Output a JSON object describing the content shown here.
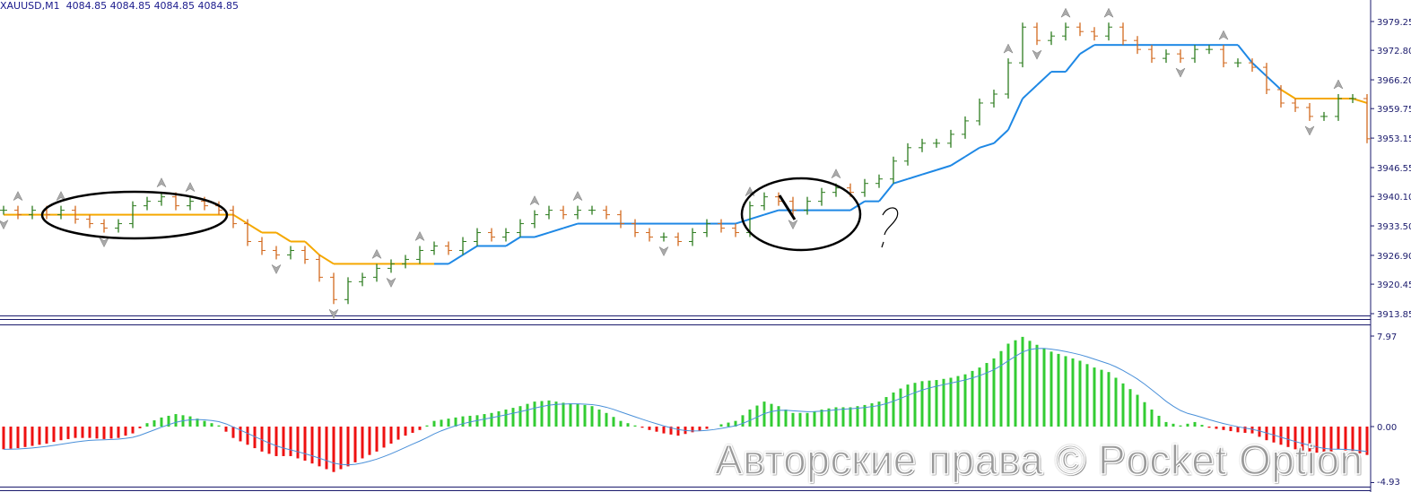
{
  "chart_header": {
    "title": "XAUUSD,M1  4084.85 4084.85 4084.85 4084.85"
  },
  "watermark": "Авторские права © Pocket Option",
  "colors": {
    "bull": "#2e7d1f",
    "bear": "#d2691e",
    "stop_long": "#1e88e5",
    "stop_short": "#f5a800",
    "hist_pos": "#33cc33",
    "hist_neg": "#ee1111",
    "signal": "#4a90d9",
    "axis": "#1a1a6c",
    "annotation": "#000000"
  },
  "chart_data": [
    {
      "type": "line",
      "panel": "price",
      "ylim": [
        3913.85,
        3982
      ],
      "y_ticks": [
        "3979.25",
        "3972.80",
        "3966.20",
        "3959.75",
        "3953.15",
        "3946.55",
        "3940.10",
        "3933.50",
        "3926.90",
        "3920.45",
        "3913.85"
      ],
      "closes": [
        3937,
        3936,
        3937,
        3936,
        3937,
        3935,
        3934,
        3933,
        3934,
        3938,
        3939,
        3940,
        3938,
        3939,
        3938,
        3937,
        3934,
        3930,
        3928,
        3927,
        3928,
        3926,
        3922,
        3917,
        3921,
        3922,
        3924,
        3925,
        3926,
        3928,
        3929,
        3928,
        3930,
        3932,
        3931,
        3932,
        3934,
        3936,
        3937,
        3936,
        3937,
        3937,
        3936,
        3934,
        3932,
        3931,
        3931,
        3930,
        3932,
        3934,
        3933,
        3932,
        3938,
        3940,
        3939,
        3937,
        3939,
        3941,
        3942,
        3941,
        3943,
        3944,
        3948,
        3951,
        3952,
        3952,
        3954,
        3957,
        3961,
        3963,
        3970,
        3978,
        3975,
        3976,
        3978,
        3977,
        3976,
        3978,
        3975,
        3973,
        3971,
        3972,
        3971,
        3973,
        3973,
        3970,
        3970,
        3969,
        3964,
        3961,
        3960,
        3958,
        3958,
        3962,
        3962,
        3953
      ],
      "stop_line": [
        3936,
        3936,
        3936,
        3936,
        3936,
        3936,
        3936,
        3936,
        3936,
        3936,
        3936,
        3936,
        3936,
        3936,
        3936,
        3936,
        3936,
        3934,
        3932,
        3932,
        3930,
        3930,
        3927,
        3925,
        3925,
        3925,
        3925,
        3925,
        3925,
        3925,
        3925,
        3925,
        3927,
        3929,
        3929,
        3929,
        3931,
        3931,
        3932,
        3933,
        3934,
        3934,
        3934,
        3934,
        3934,
        3934,
        3934,
        3934,
        3934,
        3934,
        3934,
        3934,
        3935,
        3936,
        3937,
        3937,
        3937,
        3937,
        3937,
        3937,
        3939,
        3939,
        3943,
        3944,
        3945,
        3946,
        3947,
        3949,
        3951,
        3952,
        3955,
        3962,
        3965,
        3968,
        3968,
        3972,
        3974,
        3974,
        3974,
        3974,
        3974,
        3974,
        3974,
        3974,
        3974,
        3974,
        3974,
        3970,
        3967,
        3964,
        3962,
        3962,
        3962,
        3962,
        3962,
        3961
      ],
      "stop_side": "SSSSSSSSSSSSSSSSSSSSSSSSSSSSSSSLLLLLLLLLLLLLLLLLLLLLLLLLLLLLLLLLLLLLLLLLLLLLLLLLLLLLLLLLLLSSSSSSSSS",
      "fractals_up": [
        1,
        4,
        11,
        13,
        26,
        29,
        37,
        40,
        52,
        58,
        70,
        74,
        77,
        85,
        93
      ],
      "fractals_down": [
        0,
        7,
        19,
        23,
        27,
        46,
        55,
        72,
        82,
        91
      ]
    },
    {
      "type": "bar",
      "panel": "oscillator",
      "ylim": [
        -4.93,
        7.97
      ],
      "y_ticks": [
        "7.97",
        "0.00",
        "-4.93"
      ],
      "values": [
        -2.0,
        -1.9,
        -1.7,
        -1.5,
        -1.2,
        -1.0,
        -1.0,
        -1.1,
        -1.0,
        -0.6,
        0.3,
        0.8,
        1.1,
        0.9,
        0.5,
        0.1,
        -1.0,
        -1.6,
        -2.2,
        -2.6,
        -2.6,
        -3.0,
        -3.5,
        -4.0,
        -3.5,
        -2.8,
        -2.2,
        -1.5,
        -0.8,
        -0.3,
        0.5,
        0.7,
        0.9,
        1.0,
        1.2,
        1.5,
        1.8,
        2.2,
        2.3,
        2.1,
        2.0,
        1.8,
        1.2,
        0.5,
        0.1,
        -0.3,
        -0.6,
        -0.8,
        -0.5,
        -0.2,
        0.2,
        0.5,
        1.5,
        2.2,
        1.8,
        1.2,
        1.2,
        1.5,
        1.7,
        1.7,
        1.9,
        2.2,
        3.0,
        3.7,
        4.0,
        4.1,
        4.3,
        4.6,
        5.2,
        6.0,
        7.3,
        7.9,
        7.2,
        6.6,
        6.2,
        5.8,
        5.2,
        4.8,
        3.8,
        2.8,
        1.5,
        0.4,
        0.1,
        0.4,
        -0.1,
        -0.3,
        -0.5,
        -0.6,
        -1.2,
        -1.6,
        -2.0,
        -2.2,
        -2.4,
        -2.0,
        -2.2,
        -2.5
      ]
    }
  ]
}
